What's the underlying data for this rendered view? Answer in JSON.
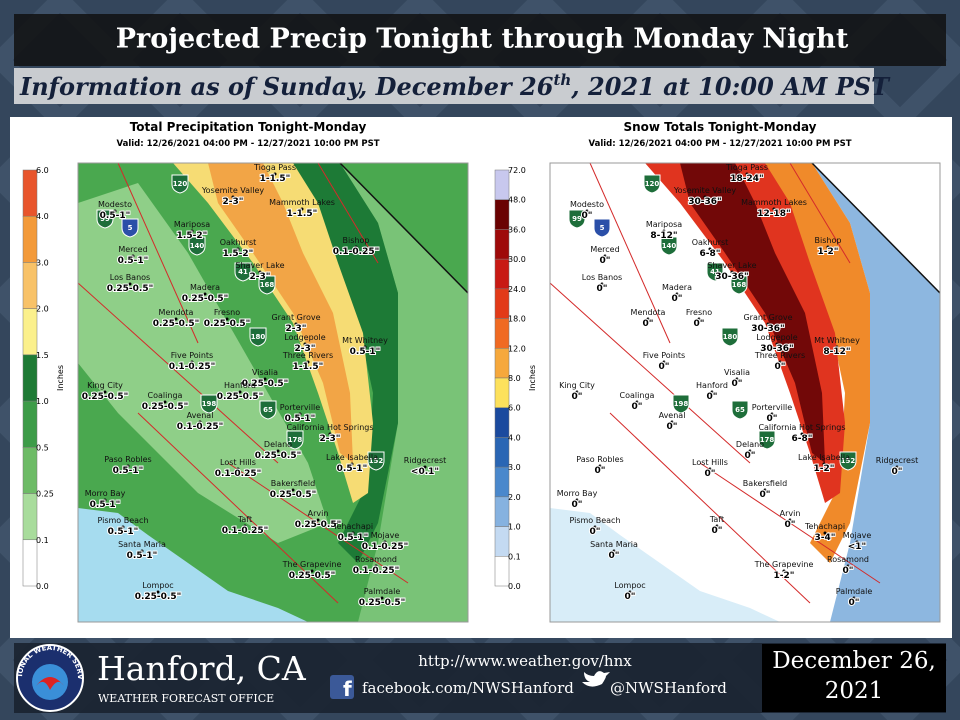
{
  "header": {
    "title": "Projected Precip Tonight through Monday Night",
    "subtitle": {
      "before": "Information as of Sunday, December 26",
      "sup": "th",
      "after": ", 2021 at 10:00 AM PST"
    }
  },
  "maps": [
    {
      "title": "Total Precipitation Tonight-Monday",
      "valid": "Valid: 12/26/2021 04:00 PM - 12/27/2021 10:00 PM PST",
      "legend_label": "Inches",
      "legend": [
        "6.0",
        "4.0",
        "3.0",
        "2.0",
        "1.5",
        "1.0",
        "0.5",
        "0.25",
        "0.1",
        "0.0"
      ],
      "places": [
        {
          "name": "Tioga Pass",
          "amount": "1-1.5\""
        },
        {
          "name": "Yosemite Valley",
          "amount": "2-3\""
        },
        {
          "name": "Mammoth Lakes",
          "amount": "1-1.5\""
        },
        {
          "name": "Modesto",
          "amount": "0.5-1\""
        },
        {
          "name": "Mariposa",
          "amount": "1.5-2\""
        },
        {
          "name": "Merced",
          "amount": "0.5-1\""
        },
        {
          "name": "Oakhurst",
          "amount": "1.5-2\""
        },
        {
          "name": "Bishop",
          "amount": "0.1-0.25\""
        },
        {
          "name": "Shaver Lake",
          "amount": "2-3\""
        },
        {
          "name": "Los Banos",
          "amount": "0.25-0.5\""
        },
        {
          "name": "Madera",
          "amount": "0.25-0.5\""
        },
        {
          "name": "Mendota",
          "amount": "0.25-0.5\""
        },
        {
          "name": "Fresno",
          "amount": "0.25-0.5\""
        },
        {
          "name": "Grant Grove",
          "amount": "2-3\""
        },
        {
          "name": "Lodgepole",
          "amount": "2-3\""
        },
        {
          "name": "Mt Whitney",
          "amount": "0.5-1\""
        },
        {
          "name": "Five Points",
          "amount": "0.1-0.25\""
        },
        {
          "name": "Three Rivers",
          "amount": "1-1.5\""
        },
        {
          "name": "Visalia",
          "amount": "0.25-0.5\""
        },
        {
          "name": "Hanford",
          "amount": "0.25-0.5\""
        },
        {
          "name": "King City",
          "amount": "0.25-0.5\""
        },
        {
          "name": "Coalinga",
          "amount": "0.25-0.5\""
        },
        {
          "name": "Avenal",
          "amount": "0.1-0.25\""
        },
        {
          "name": "Porterville",
          "amount": "0.5-1\""
        },
        {
          "name": "California Hot Springs",
          "amount": "2-3\""
        },
        {
          "name": "Delano",
          "amount": "0.25-0.5\""
        },
        {
          "name": "Paso Robles",
          "amount": "0.5-1\""
        },
        {
          "name": "Lost Hills",
          "amount": "0.1-0.25\""
        },
        {
          "name": "Lake Isabella",
          "amount": "0.5-1\""
        },
        {
          "name": "Ridgecrest",
          "amount": "<0.1\""
        },
        {
          "name": "Bakersfield",
          "amount": "0.25-0.5\""
        },
        {
          "name": "Morro Bay",
          "amount": "0.5-1\""
        },
        {
          "name": "Pismo Beach",
          "amount": "0.5-1\""
        },
        {
          "name": "Taft",
          "amount": "0.1-0.25\""
        },
        {
          "name": "Arvin",
          "amount": "0.25-0.5\""
        },
        {
          "name": "Tehachapi",
          "amount": "0.5-1\""
        },
        {
          "name": "Mojave",
          "amount": "0.1-0.25\""
        },
        {
          "name": "Santa Maria",
          "amount": "0.5-1\""
        },
        {
          "name": "The Grapevine",
          "amount": "0.25-0.5\""
        },
        {
          "name": "Rosamond",
          "amount": "0.1-0.25\""
        },
        {
          "name": "Lompoc",
          "amount": "0.25-0.5\""
        },
        {
          "name": "Palmdale",
          "amount": "0.25-0.5\""
        }
      ]
    },
    {
      "title": "Snow Totals Tonight-Monday",
      "valid": "Valid: 12/26/2021 04:00 PM - 12/27/2021 10:00 PM PST",
      "legend_label": "Inches",
      "legend": [
        "72.0",
        "48.0",
        "36.0",
        "30.0",
        "24.0",
        "18.0",
        "12.0",
        "8.0",
        "6.0",
        "4.0",
        "3.0",
        "2.0",
        "1.0",
        "0.1",
        "0.0"
      ],
      "places": [
        {
          "name": "Tioga Pass",
          "amount": "18-24\""
        },
        {
          "name": "Yosemite Valley",
          "amount": "30-36\""
        },
        {
          "name": "Mammoth Lakes",
          "amount": "12-18\""
        },
        {
          "name": "Modesto",
          "amount": "0\""
        },
        {
          "name": "Mariposa",
          "amount": "8-12\""
        },
        {
          "name": "Merced",
          "amount": "0\""
        },
        {
          "name": "Oakhurst",
          "amount": "6-8\""
        },
        {
          "name": "Bishop",
          "amount": "1-2\""
        },
        {
          "name": "Shaver Lake",
          "amount": "30-36\""
        },
        {
          "name": "Los Banos",
          "amount": "0\""
        },
        {
          "name": "Madera",
          "amount": "0\""
        },
        {
          "name": "Mendota",
          "amount": "0\""
        },
        {
          "name": "Fresno",
          "amount": "0\""
        },
        {
          "name": "Grant Grove",
          "amount": "30-36\""
        },
        {
          "name": "Lodgepole",
          "amount": "30-36\""
        },
        {
          "name": "Mt Whitney",
          "amount": "8-12\""
        },
        {
          "name": "Five Points",
          "amount": "0\""
        },
        {
          "name": "Three Rivers",
          "amount": "0\""
        },
        {
          "name": "Visalia",
          "amount": "0\""
        },
        {
          "name": "Hanford",
          "amount": "0\""
        },
        {
          "name": "King City",
          "amount": "0\""
        },
        {
          "name": "Coalinga",
          "amount": "0\""
        },
        {
          "name": "Avenal",
          "amount": "0\""
        },
        {
          "name": "Porterville",
          "amount": "0\""
        },
        {
          "name": "California Hot Springs",
          "amount": "6-8\""
        },
        {
          "name": "Delano",
          "amount": "0\""
        },
        {
          "name": "Paso Robles",
          "amount": "0\""
        },
        {
          "name": "Lost Hills",
          "amount": "0\""
        },
        {
          "name": "Lake Isabella",
          "amount": "1-2\""
        },
        {
          "name": "Ridgecrest",
          "amount": "0\""
        },
        {
          "name": "Bakersfield",
          "amount": "0\""
        },
        {
          "name": "Morro Bay",
          "amount": "0\""
        },
        {
          "name": "Pismo Beach",
          "amount": "0\""
        },
        {
          "name": "Taft",
          "amount": "0\""
        },
        {
          "name": "Arvin",
          "amount": "0\""
        },
        {
          "name": "Tehachapi",
          "amount": "3-4\""
        },
        {
          "name": "Mojave",
          "amount": "<1\""
        },
        {
          "name": "Santa Maria",
          "amount": "0\""
        },
        {
          "name": "The Grapevine",
          "amount": "1-2\""
        },
        {
          "name": "Rosamond",
          "amount": "0\""
        },
        {
          "name": "Lompoc",
          "amount": "0\""
        },
        {
          "name": "Palmdale",
          "amount": "0\""
        }
      ]
    }
  ],
  "highways": [
    "120",
    "99",
    "5",
    "140",
    "41",
    "168",
    "180",
    "198",
    "65",
    "178",
    "152"
  ],
  "footer": {
    "logo_text": "NATIONAL WEATHER SERVICE",
    "office": "Hanford, CA",
    "office_sub": "WEATHER FORECAST OFFICE",
    "url": "http://www.weather.gov/hnx",
    "facebook": "facebook.com/NWSHanford",
    "twitter": "@NWSHanford",
    "date_lines": [
      "December 26,",
      "2021"
    ]
  }
}
